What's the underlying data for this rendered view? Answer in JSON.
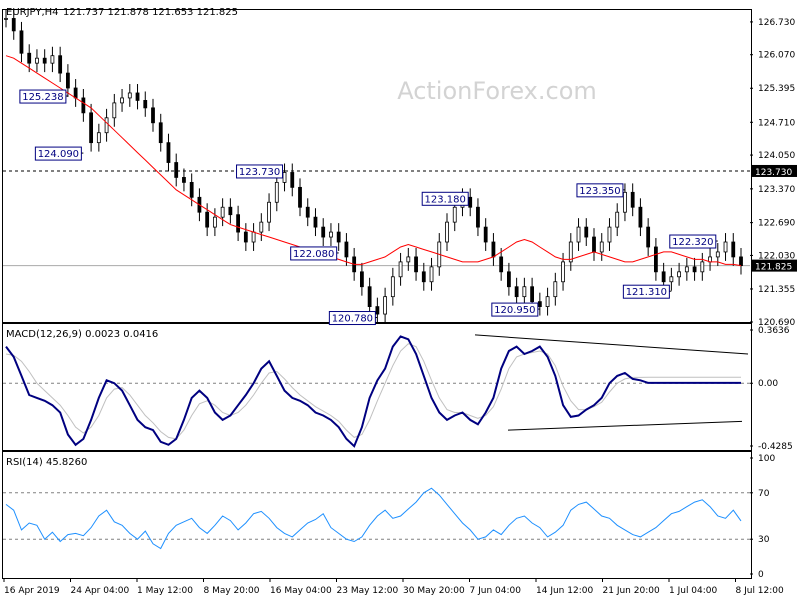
{
  "header": {
    "symbol_label": "EURJPY,H4",
    "ohlc": "121.737 121.878 121.653 121.825",
    "watermark": "ActionForex.com"
  },
  "colors": {
    "candle": "#000000",
    "ma_line": "#ff0000",
    "macd_line": "#000080",
    "signal_line": "#c0c0c0",
    "rsi_line": "#1e90ff",
    "grid": "#000000",
    "tag_border": "#000080",
    "tag_text": "#000080",
    "price_marker": "#000000",
    "watermark": "#d3d3d3"
  },
  "chart_data": [
    {
      "type": "line",
      "panel": "price",
      "ylim": [
        120.69,
        126.97
      ],
      "y_ticks": [
        "126.730",
        "126.070",
        "125.395",
        "124.710",
        "124.050",
        "123.370",
        "122.690",
        "122.030",
        "121.355",
        "120.690"
      ],
      "x_tick_labels": [
        "16 Apr 2019",
        "24 Apr 04:00",
        "1 May 12:00",
        "8 May 20:00",
        "16 May 04:00",
        "23 May 12:00",
        "30 May 20:00",
        "7 Jun 04:00",
        "14 Jun 12:00",
        "21 Jun 20:00",
        "1 Jul 04:00",
        "8 Jul 12:00"
      ],
      "series": [
        {
          "values": [
            126.8,
            126.55,
            126.1,
            125.9,
            126.0,
            125.9,
            126.05,
            125.7,
            125.4,
            125.2,
            124.9,
            124.3,
            124.5,
            124.8,
            125.1,
            125.2,
            125.3,
            125.15,
            125.0,
            124.7,
            124.3,
            123.9,
            123.6,
            123.5,
            123.2,
            122.9,
            122.6,
            122.8,
            123.0,
            122.85,
            122.5,
            122.3,
            122.5,
            122.7,
            123.1,
            123.5,
            123.7,
            123.4,
            123.0,
            122.8,
            122.6,
            122.4,
            122.5,
            122.3,
            122.0,
            121.7,
            121.4,
            121.0,
            120.85,
            121.2,
            121.6,
            121.9,
            122.0,
            121.7,
            121.5,
            121.8,
            122.3,
            122.7,
            123.0,
            123.2,
            123.0,
            122.6,
            122.3,
            122.0,
            121.7,
            121.4,
            121.2,
            121.4,
            121.1,
            121.0,
            121.2,
            121.5,
            121.9,
            122.3,
            122.6,
            122.4,
            122.1,
            122.3,
            122.6,
            122.9,
            123.3,
            123.0,
            122.6,
            122.2,
            121.7,
            121.5,
            121.6,
            121.7,
            121.8,
            121.7,
            121.9,
            122.0,
            122.1,
            122.3,
            122.0,
            121.825
          ]
        },
        {
          "values": [
            126.05,
            126.0,
            125.9,
            125.8,
            125.7,
            125.6,
            125.5,
            125.4,
            125.3,
            125.2,
            125.1,
            125.0,
            124.85,
            124.7,
            124.55,
            124.4,
            124.25,
            124.1,
            123.95,
            123.8,
            123.65,
            123.5,
            123.35,
            123.25,
            123.15,
            123.05,
            122.95,
            122.85,
            122.75,
            122.65,
            122.6,
            122.55,
            122.5,
            122.45,
            122.4,
            122.35,
            122.3,
            122.25,
            122.2,
            122.15,
            122.1,
            122.05,
            122.0,
            121.95,
            121.9,
            121.85,
            121.85,
            121.9,
            121.95,
            122.0,
            122.1,
            122.2,
            122.25,
            122.2,
            122.15,
            122.1,
            122.05,
            122.0,
            121.95,
            121.9,
            121.9,
            121.9,
            121.95,
            122.0,
            122.1,
            122.2,
            122.3,
            122.35,
            122.3,
            122.2,
            122.1,
            122.0,
            121.95,
            121.95,
            122.0,
            122.05,
            122.1,
            122.05,
            122.0,
            121.95,
            121.9,
            121.9,
            121.95,
            122.0,
            122.05,
            122.1,
            122.1,
            122.05,
            122.0,
            121.95,
            121.95,
            121.9,
            121.9,
            121.85,
            121.85,
            121.825
          ]
        }
      ],
      "annotations": [
        "125.238",
        "124.090",
        "123.730",
        "122.080",
        "120.780",
        "123.180",
        "120.950",
        "123.350",
        "122.320",
        "121.310"
      ],
      "reference_lines": [
        {
          "value": 123.73,
          "label": "123.730",
          "style": "dashed"
        },
        {
          "value": 121.825,
          "label": "121.825",
          "style": "current"
        }
      ]
    },
    {
      "type": "line",
      "panel": "macd",
      "title": "MACD(12,26,9) 0.0023 0.0416",
      "ylim": [
        -0.4285,
        0.3636
      ],
      "y_ticks": [
        "0.3636",
        "0.00",
        "-0.4285"
      ],
      "series": [
        {
          "values": [
            0.25,
            0.18,
            0.05,
            -0.08,
            -0.1,
            -0.12,
            -0.15,
            -0.2,
            -0.35,
            -0.42,
            -0.38,
            -0.25,
            -0.1,
            0.02,
            0.0,
            -0.05,
            -0.15,
            -0.25,
            -0.3,
            -0.32,
            -0.4,
            -0.42,
            -0.38,
            -0.25,
            -0.1,
            -0.05,
            -0.1,
            -0.2,
            -0.25,
            -0.22,
            -0.15,
            -0.08,
            0.0,
            0.1,
            0.15,
            0.05,
            -0.05,
            -0.1,
            -0.12,
            -0.15,
            -0.2,
            -0.22,
            -0.25,
            -0.3,
            -0.38,
            -0.43,
            -0.3,
            -0.1,
            0.02,
            0.1,
            0.25,
            0.32,
            0.3,
            0.2,
            0.05,
            -0.1,
            -0.2,
            -0.25,
            -0.22,
            -0.2,
            -0.25,
            -0.28,
            -0.2,
            -0.1,
            0.1,
            0.22,
            0.25,
            0.2,
            0.22,
            0.25,
            0.18,
            0.05,
            -0.15,
            -0.23,
            -0.22,
            -0.18,
            -0.15,
            -0.1,
            0.0,
            0.05,
            0.07,
            0.03,
            0.02,
            0.0023,
            0.0023,
            0.0023,
            0.0023,
            0.0023,
            0.0023,
            0.0023,
            0.0023,
            0.0023,
            0.0023,
            0.0023,
            0.0023,
            0.0023
          ]
        },
        {
          "values": [
            0.2,
            0.19,
            0.15,
            0.08,
            0.0,
            -0.05,
            -0.1,
            -0.15,
            -0.22,
            -0.3,
            -0.34,
            -0.3,
            -0.22,
            -0.1,
            -0.04,
            -0.03,
            -0.08,
            -0.15,
            -0.22,
            -0.27,
            -0.33,
            -0.37,
            -0.38,
            -0.32,
            -0.22,
            -0.14,
            -0.12,
            -0.15,
            -0.2,
            -0.22,
            -0.2,
            -0.15,
            -0.08,
            0.0,
            0.07,
            0.08,
            0.03,
            -0.03,
            -0.08,
            -0.12,
            -0.16,
            -0.19,
            -0.22,
            -0.26,
            -0.32,
            -0.37,
            -0.35,
            -0.25,
            -0.12,
            0.0,
            0.12,
            0.22,
            0.27,
            0.25,
            0.15,
            0.02,
            -0.1,
            -0.18,
            -0.2,
            -0.2,
            -0.22,
            -0.24,
            -0.22,
            -0.16,
            -0.04,
            0.1,
            0.18,
            0.2,
            0.21,
            0.22,
            0.2,
            0.12,
            -0.02,
            -0.12,
            -0.18,
            -0.18,
            -0.16,
            -0.13,
            -0.06,
            0.0,
            0.03,
            0.04,
            0.04,
            0.0416,
            0.0416,
            0.0416,
            0.0416,
            0.0416,
            0.0416,
            0.0416,
            0.0416,
            0.0416,
            0.0416,
            0.0416,
            0.0416,
            0.0416
          ]
        }
      ]
    },
    {
      "type": "line",
      "panel": "rsi",
      "title": "RSI(14) 45.8260",
      "ylim": [
        0,
        100
      ],
      "y_ticks": [
        "100",
        "70",
        "30",
        "0"
      ],
      "series": [
        {
          "values": [
            60,
            55,
            38,
            44,
            42,
            30,
            36,
            28,
            34,
            35,
            33,
            40,
            50,
            55,
            45,
            42,
            35,
            30,
            37,
            26,
            22,
            35,
            42,
            45,
            48,
            40,
            35,
            42,
            50,
            46,
            38,
            44,
            52,
            54,
            48,
            40,
            35,
            32,
            38,
            44,
            47,
            52,
            40,
            35,
            30,
            28,
            32,
            42,
            50,
            55,
            48,
            50,
            56,
            62,
            70,
            74,
            68,
            60,
            52,
            44,
            38,
            30,
            32,
            38,
            34,
            42,
            48,
            50,
            44,
            40,
            32,
            36,
            42,
            55,
            60,
            62,
            56,
            50,
            48,
            42,
            38,
            34,
            32,
            36,
            40,
            46,
            52,
            54,
            58,
            62,
            64,
            58,
            50,
            48,
            55,
            45.8
          ]
        }
      ]
    }
  ]
}
